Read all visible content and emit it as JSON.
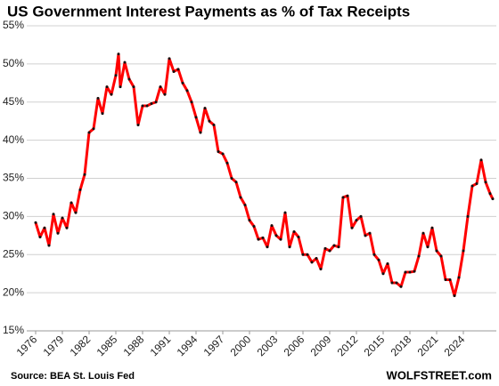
{
  "chart_data": {
    "type": "line",
    "title": "US Government Interest Payments as % of Tax Receipts",
    "source": "Source:  BEA St. Louis Fed",
    "watermark": "WOLFSTREET.com",
    "x": [
      1976,
      1976.5,
      1977,
      1977.5,
      1978,
      1978.5,
      1979,
      1979.5,
      1980,
      1980.5,
      1981,
      1981.5,
      1982,
      1982.5,
      1983,
      1983.5,
      1984,
      1984.5,
      1985,
      1985.3,
      1985.5,
      1986,
      1986.5,
      1987,
      1987.5,
      1988,
      1988.5,
      1989,
      1989.5,
      1990,
      1990.5,
      1991,
      1991.5,
      1992,
      1992.5,
      1993,
      1993.5,
      1994,
      1994.5,
      1995,
      1995.5,
      1996,
      1996.5,
      1997,
      1997.5,
      1998,
      1998.5,
      1999,
      1999.5,
      2000,
      2000.5,
      2001,
      2001.5,
      2002,
      2002.5,
      2003,
      2003.5,
      2004,
      2004.5,
      2005,
      2005.5,
      2006,
      2006.5,
      2007,
      2007.5,
      2008,
      2008.5,
      2009,
      2009.5,
      2010,
      2010.5,
      2011,
      2011.5,
      2012,
      2012.5,
      2013,
      2013.5,
      2014,
      2014.5,
      2015,
      2015.5,
      2016,
      2016.5,
      2017,
      2017.5,
      2018,
      2018.5,
      2019,
      2019.5,
      2020,
      2020.5,
      2021,
      2021.5,
      2022,
      2022.5,
      2023,
      2023.5,
      2024,
      2024.5,
      2025,
      2025.5,
      2026,
      2026.5,
      2027,
      2027.3
    ],
    "series": [
      {
        "name": "Interest payments as % of tax receipts",
        "color": "#ff0000",
        "marker_color": "#111111",
        "values": [
          29.2,
          27.3,
          28.5,
          26.2,
          30.3,
          27.8,
          29.8,
          28.5,
          31.8,
          30.5,
          33.5,
          35.5,
          41,
          41.5,
          45.5,
          43.5,
          47,
          46,
          48.5,
          51.3,
          47,
          50.2,
          48,
          47,
          42,
          44.5,
          44.5,
          44.8,
          45,
          47,
          46,
          50.7,
          49,
          49.3,
          47.5,
          46.5,
          45,
          43,
          41,
          44.2,
          42.5,
          42,
          38.5,
          38.2,
          37,
          35,
          34.5,
          32.5,
          31.5,
          29.5,
          28.7,
          27,
          27.2,
          26,
          28.8,
          27.5,
          27,
          30.5,
          26,
          28,
          27.3,
          25,
          25,
          24,
          24.5,
          23.1,
          25.8,
          25.5,
          26.2,
          26,
          32.5,
          32.7,
          28.5,
          29.5,
          30,
          27.5,
          27.8,
          25,
          24.3,
          22.5,
          23.8,
          21.3,
          21.3,
          20.8,
          22.7,
          22.7,
          22.8,
          24.8,
          27.8,
          26,
          28.5,
          25.5,
          24.8,
          21.7,
          21.7,
          19.6,
          22,
          25.5,
          30,
          34,
          34.3,
          37.4,
          34.5,
          33,
          32.3
        ]
      }
    ],
    "xlim": [
      1975,
      2027.7
    ],
    "xticks": [
      1976,
      1979,
      1982,
      1985,
      1988,
      1991,
      1994,
      1997,
      2000,
      2003,
      2006,
      2009,
      2012,
      2015,
      2018,
      2021,
      2024
    ],
    "ylim": [
      15,
      55
    ],
    "yticks": [
      {
        "value": 15,
        "label": "15%"
      },
      {
        "value": 20,
        "label": "20%"
      },
      {
        "value": 25,
        "label": "25%"
      },
      {
        "value": 30,
        "label": "30%"
      },
      {
        "value": 35,
        "label": "35%"
      },
      {
        "value": 40,
        "label": "40%"
      },
      {
        "value": 45,
        "label": "45%"
      },
      {
        "value": 50,
        "label": "50%"
      },
      {
        "value": 55,
        "label": "55%"
      }
    ],
    "grid": true
  }
}
